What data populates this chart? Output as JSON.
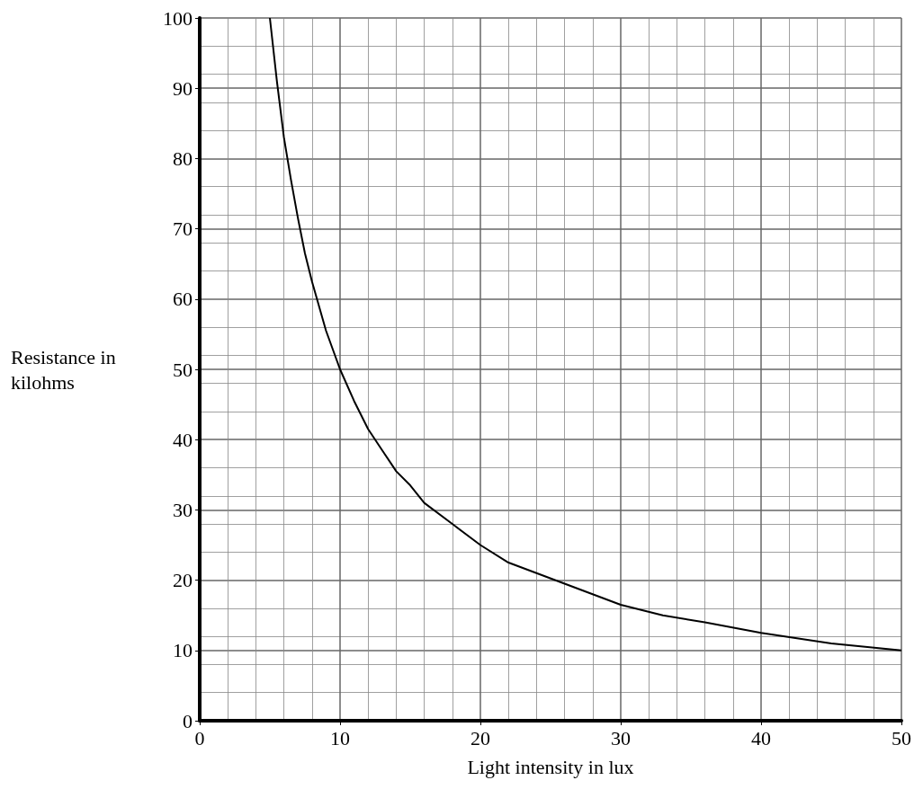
{
  "chart_data": {
    "type": "line",
    "xlabel": "Light intensity in lux",
    "ylabel": "Resistance in kilohms",
    "x": [
      5,
      5.5,
      6,
      6.5,
      7,
      7.5,
      8,
      9,
      10,
      11,
      12,
      13,
      14,
      15,
      16,
      18,
      20,
      22,
      24,
      26,
      28,
      30,
      33,
      36,
      40,
      45,
      50
    ],
    "series": [
      {
        "color": "#000000",
        "values": [
          100,
          91,
          83,
          77,
          71.5,
          66.5,
          62.5,
          55.5,
          50,
          45.5,
          41.5,
          38.5,
          35.5,
          33.5,
          31,
          28,
          25,
          22.5,
          21,
          19.5,
          18,
          16.5,
          15,
          14,
          12.5,
          11,
          10
        ]
      }
    ],
    "xlim": [
      0,
      50
    ],
    "xticks": [
      0,
      10,
      20,
      30,
      40,
      50
    ],
    "ylim": [
      0,
      100
    ],
    "yticks": [
      0,
      10,
      20,
      30,
      40,
      50,
      60,
      70,
      80,
      90,
      100
    ],
    "grid": true,
    "marker": "none",
    "line_style": "solid"
  }
}
